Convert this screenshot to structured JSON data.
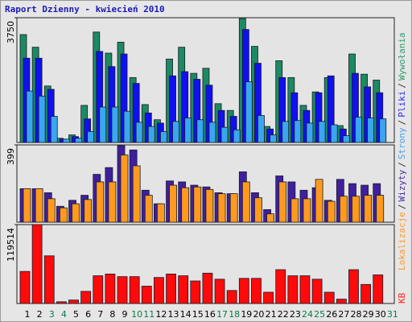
{
  "chart_data": [
    {
      "type": "bar",
      "title": "Raport Dzienny -  kwiecień 2010",
      "legend_separator": "/",
      "ylim": [
        0,
        3750
      ],
      "yticks": [
        3750
      ],
      "series": [
        {
          "name": "Wywołania",
          "color": "#1c8a62",
          "label_color": "#2e9a6e",
          "values": [
            3243,
            2863,
            1698,
            127,
            228,
            1115,
            3319,
            2686,
            3015,
            1951,
            1140,
            684,
            2508,
            2863,
            2078,
            2230,
            1166,
            963,
            3725,
            2889,
            481,
            2458,
            1951,
            1115,
            1520,
            1951,
            507,
            2660,
            2052,
            1875,
            null
          ]
        },
        {
          "name": "Pliki",
          "color": "#1010f0",
          "label_color": "#2a2af0",
          "values": [
            2534,
            2534,
            1597,
            101,
            177,
            709,
            2737,
            2281,
            2660,
            1775,
            887,
            583,
            2002,
            2129,
            1900,
            1723,
            963,
            786,
            3396,
            2382,
            405,
            1951,
            1495,
            963,
            1495,
            2002,
            405,
            2078,
            1672,
            1495,
            null
          ]
        },
        {
          "name": "Strony",
          "color": "#3aa6f0",
          "label_color": "#4a9ff0",
          "values": [
            1546,
            1394,
            786,
            101,
            127,
            329,
            1064,
            1064,
            938,
            608,
            481,
            329,
            633,
            735,
            684,
            608,
            456,
            380,
            1824,
            811,
            228,
            633,
            659,
            583,
            633,
            532,
            203,
            760,
            735,
            709,
            null
          ]
        }
      ]
    },
    {
      "type": "bar",
      "ylim": [
        0,
        399
      ],
      "yticks": [
        399
      ],
      "series": [
        {
          "name": "Wizyty",
          "color": "#3f1f9e",
          "label_color": "#4a2ca0",
          "values": [
            173,
            173,
            152,
            82,
            113,
            139,
            247,
            282,
            395,
            373,
            165,
            95,
            213,
            208,
            191,
            182,
            152,
            147,
            260,
            152,
            65,
            239,
            208,
            165,
            178,
            113,
            221,
            199,
            191,
            199,
            null
          ]
        },
        {
          "name": "Lokalizacje",
          "color": "#ff9a1f",
          "label_color": "#ff9933",
          "values": [
            173,
            173,
            121,
            74,
            95,
            117,
            208,
            208,
            347,
            291,
            139,
            95,
            191,
            178,
            182,
            169,
            147,
            147,
            208,
            126,
            43,
            208,
            121,
            121,
            221,
            108,
            134,
            134,
            139,
            139,
            null
          ]
        }
      ]
    },
    {
      "type": "bar",
      "ylim": [
        0,
        119514
      ],
      "yticks": [
        119514
      ],
      "categories": [
        "1",
        "2",
        "3",
        "4",
        "5",
        "6",
        "7",
        "8",
        "9",
        "10",
        "11",
        "12",
        "13",
        "14",
        "15",
        "16",
        "17",
        "18",
        "19",
        "20",
        "21",
        "22",
        "23",
        "24",
        "25",
        "26",
        "27",
        "28",
        "29",
        "30",
        "31"
      ],
      "category_colors": [
        "#000",
        "#000",
        "#0a7a4a",
        "#0a7a4a",
        "#000",
        "#000",
        "#000",
        "#000",
        "#000",
        "#0a7a4a",
        "#0a7a4a",
        "#000",
        "#000",
        "#000",
        "#000",
        "#000",
        "#0a7a4a",
        "#0a7a4a",
        "#000",
        "#000",
        "#000",
        "#000",
        "#000",
        "#0a7a4a",
        "#0a7a4a",
        "#000",
        "#000",
        "#000",
        "#000",
        "#000",
        "#0a7a4a"
      ],
      "series": [
        {
          "name": "KB",
          "color": "#ff0a0a",
          "label_color": "#ff2020",
          "values": [
            48581,
            119514,
            72215,
            2626,
            5252,
            18382,
            42016,
            44642,
            40703,
            40703,
            26260,
            39390,
            44642,
            42016,
            34138,
            45955,
            36764,
            19695,
            38077,
            38077,
            17069,
            51207,
            42016,
            42016,
            36764,
            17069,
            6565,
            51207,
            28886,
            43329,
            null
          ]
        }
      ]
    }
  ]
}
